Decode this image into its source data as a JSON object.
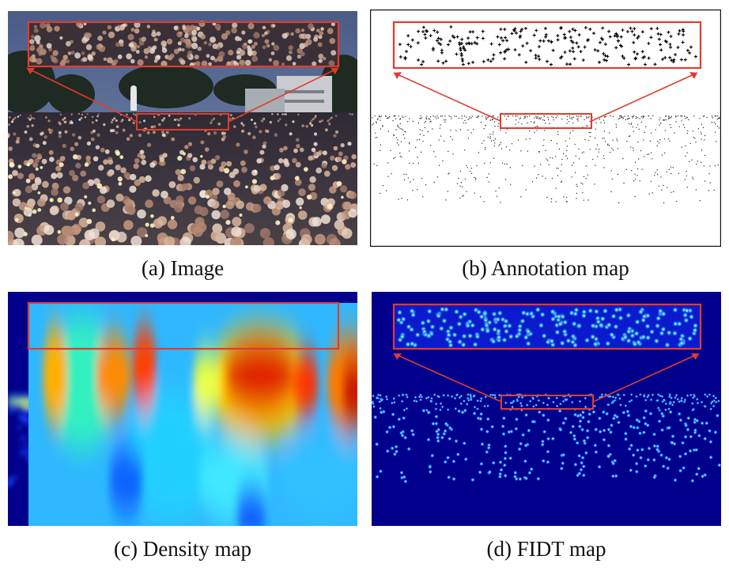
{
  "figure": {
    "panels": [
      {
        "id": "a",
        "caption": "(a) Image"
      },
      {
        "id": "b",
        "caption": "(b) Annotation map"
      },
      {
        "id": "c",
        "caption": "(c) Density map"
      },
      {
        "id": "d",
        "caption": "(d) FIDT map"
      }
    ]
  },
  "colors": {
    "highlight_red": "#e03c2e",
    "density_background": "#00008c",
    "fidt_background": "#00008c",
    "annotation_background": "#ffffff",
    "sky": "#5a6f9a",
    "crowd": "#3a3036"
  }
}
